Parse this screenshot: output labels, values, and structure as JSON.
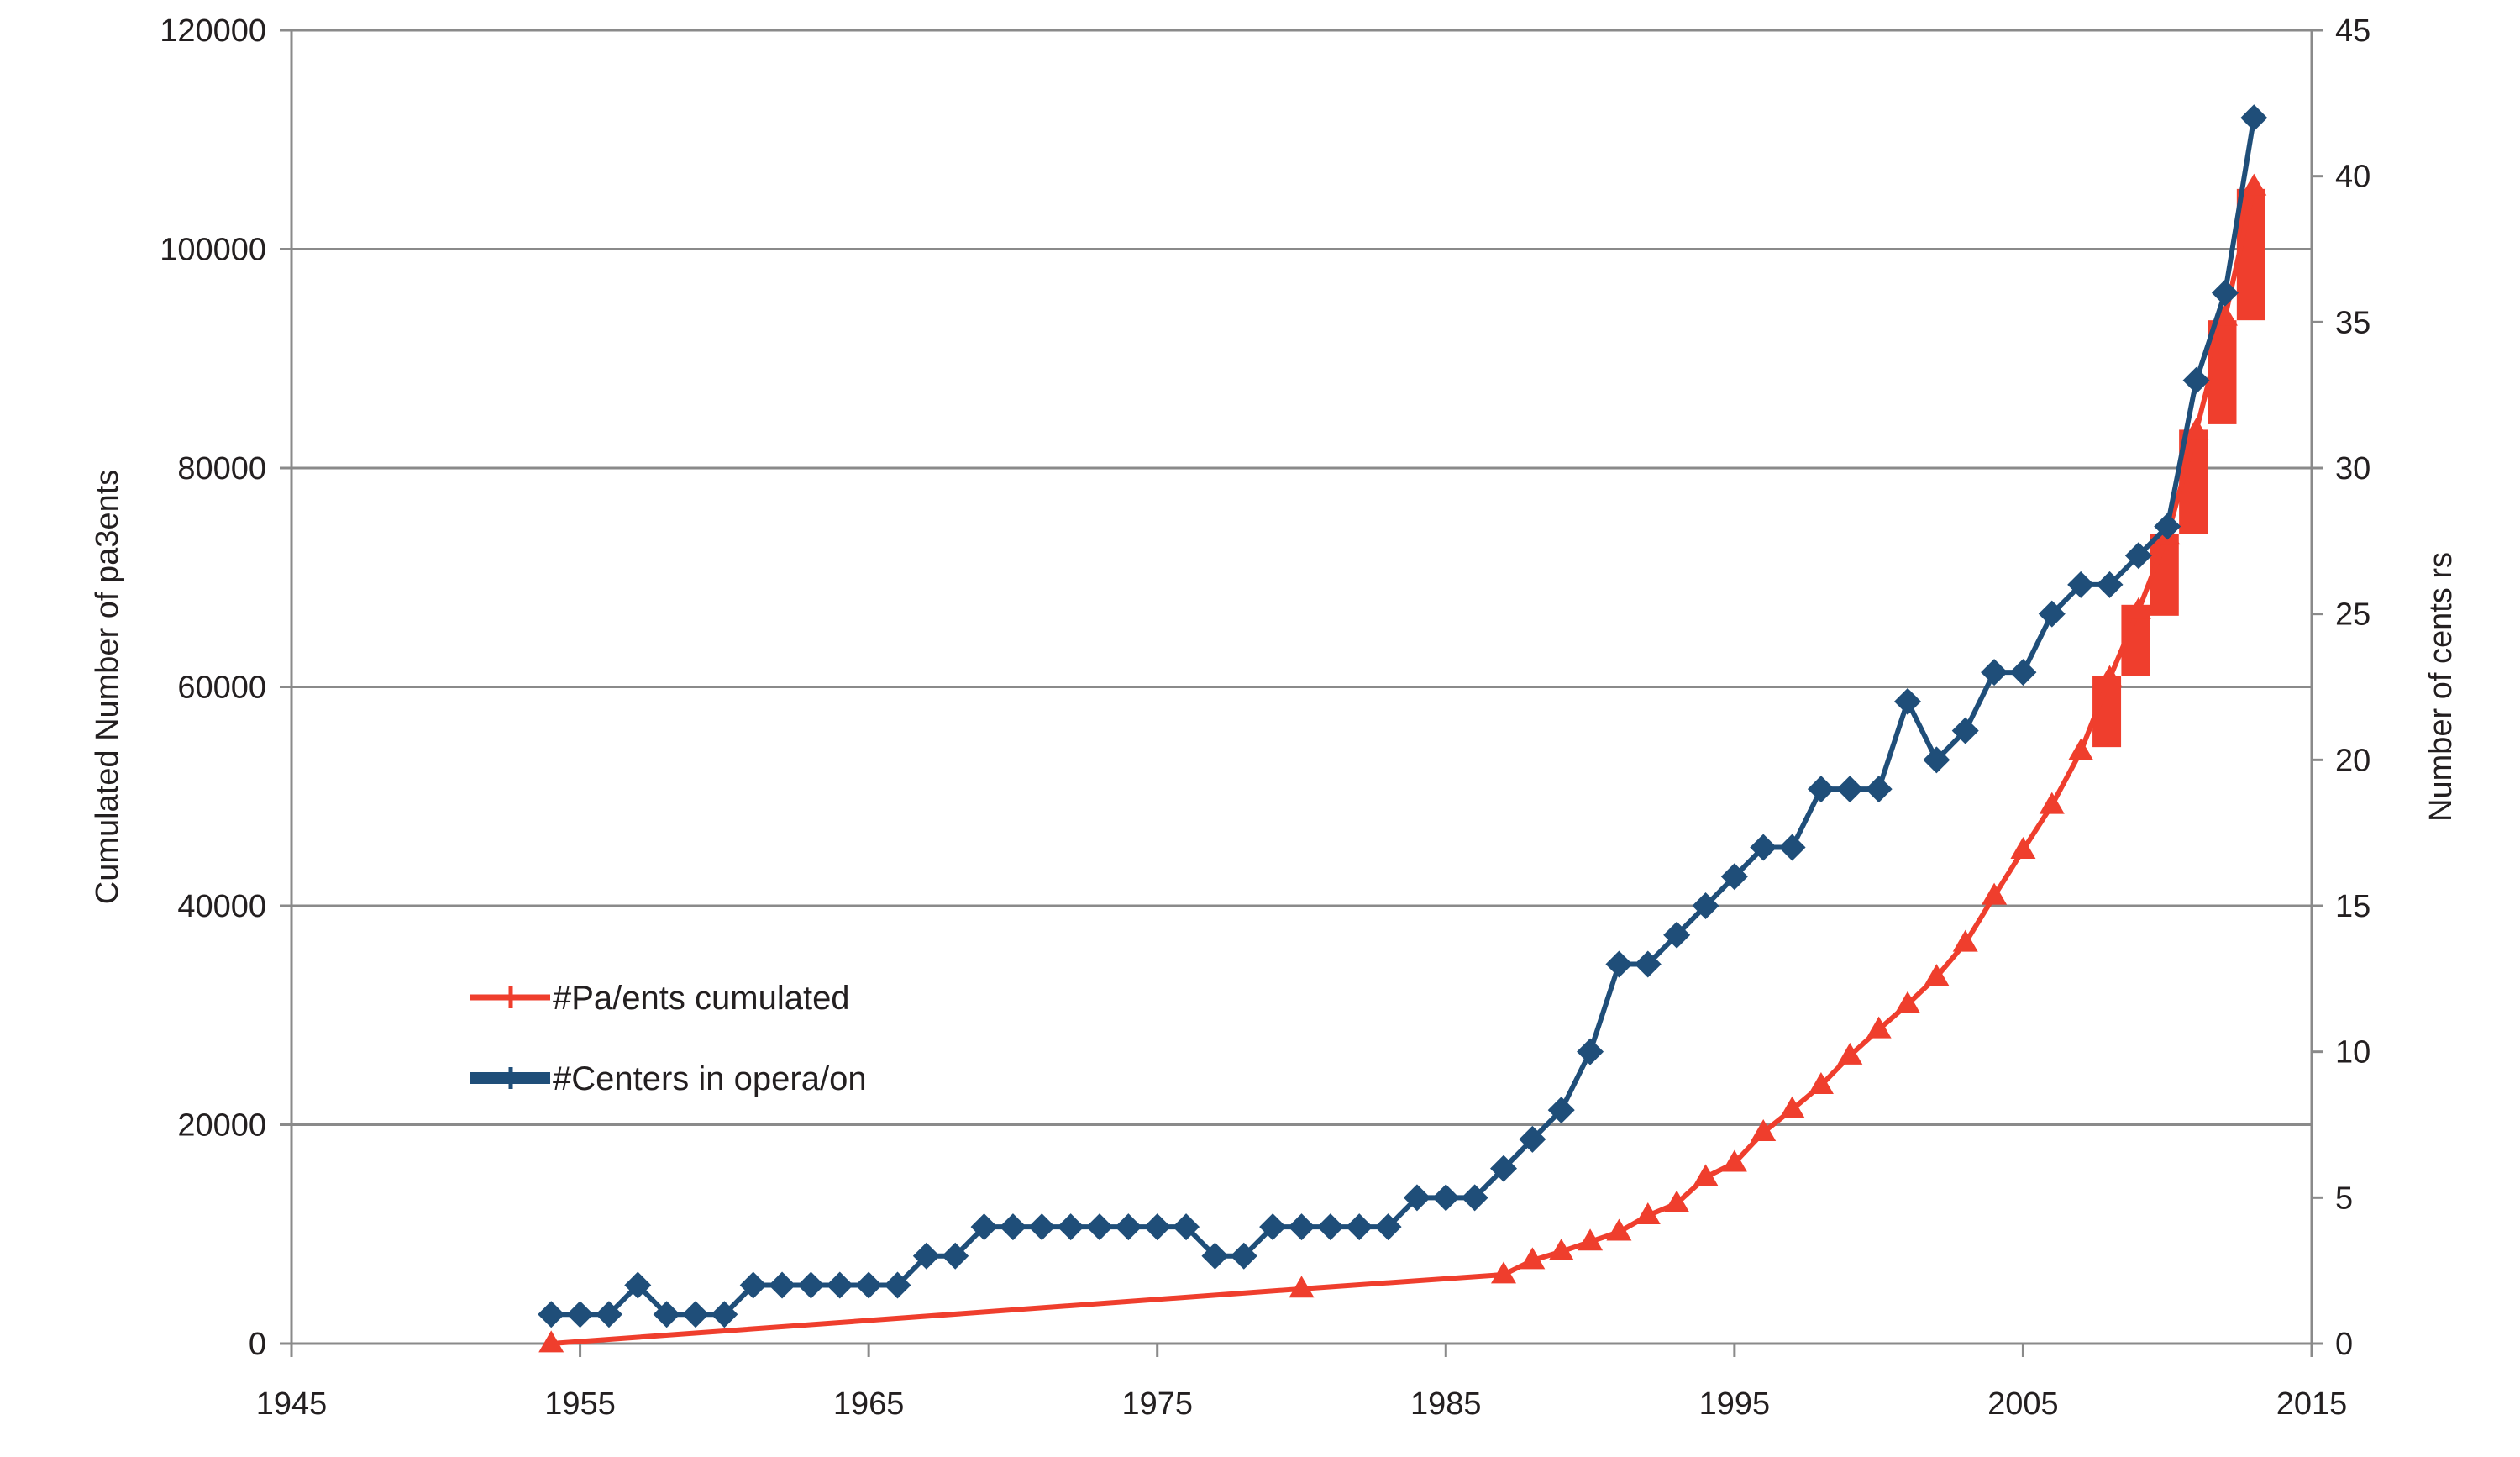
{
  "chart_data": {
    "type": "line",
    "x_axis": {
      "ticks": [
        "1945",
        "1955",
        "1965",
        "1975",
        "1985",
        "1995",
        "2005",
        "2015"
      ],
      "range": [
        1945,
        2015
      ]
    },
    "y_axis_left": {
      "label": "Cumulated Number of pa3ents",
      "ticks": [
        "0",
        "20000",
        "40000",
        "60000",
        "80000",
        "100000",
        "120000"
      ],
      "range": [
        0,
        120000
      ]
    },
    "y_axis_right": {
      "label": "Number of cents rs",
      "ticks": [
        "0",
        "5",
        "10",
        "15",
        "20",
        "25",
        "30",
        "35",
        "40",
        "45"
      ],
      "range": [
        0,
        45
      ]
    },
    "grid": "horizontal",
    "legend_position": "center-left",
    "series": [
      {
        "name": "#Pa/ents cumulated",
        "axis": "left",
        "marker": "triangle",
        "color": "#ef3e2d",
        "points": [
          [
            1954,
            0
          ],
          [
            1980,
            5000
          ],
          [
            1987,
            6300
          ],
          [
            1988,
            7600
          ],
          [
            1989,
            8400
          ],
          [
            1990,
            9300
          ],
          [
            1991,
            10200
          ],
          [
            1992,
            11700
          ],
          [
            1993,
            12800
          ],
          [
            1994,
            15200
          ],
          [
            1995,
            16500
          ],
          [
            1996,
            19300
          ],
          [
            1997,
            21400
          ],
          [
            1998,
            23600
          ],
          [
            1999,
            26300
          ],
          [
            2000,
            28700
          ],
          [
            2001,
            31000
          ],
          [
            2002,
            33500
          ],
          [
            2003,
            36600
          ],
          [
            2004,
            40900
          ],
          [
            2005,
            45100
          ],
          [
            2006,
            49200
          ],
          [
            2007,
            54100
          ],
          [
            2008,
            60800
          ],
          [
            2009,
            67000
          ],
          [
            2010,
            73800
          ],
          [
            2011,
            83400
          ],
          [
            2012,
            93800
          ],
          [
            2013,
            105700
          ]
        ]
      },
      {
        "name": "#Centers in opera/on",
        "axis": "right",
        "marker": "diamond",
        "color": "#1f4e79",
        "points": [
          [
            1954,
            1
          ],
          [
            1955,
            1
          ],
          [
            1956,
            1
          ],
          [
            1957,
            2
          ],
          [
            1958,
            1
          ],
          [
            1959,
            1
          ],
          [
            1960,
            1
          ],
          [
            1961,
            2
          ],
          [
            1962,
            2
          ],
          [
            1963,
            2
          ],
          [
            1964,
            2
          ],
          [
            1965,
            2
          ],
          [
            1966,
            2
          ],
          [
            1967,
            3
          ],
          [
            1968,
            3
          ],
          [
            1969,
            4
          ],
          [
            1970,
            4
          ],
          [
            1971,
            4
          ],
          [
            1972,
            4
          ],
          [
            1973,
            4
          ],
          [
            1974,
            4
          ],
          [
            1975,
            4
          ],
          [
            1976,
            4
          ],
          [
            1977,
            3
          ],
          [
            1978,
            3
          ],
          [
            1979,
            4
          ],
          [
            1980,
            4
          ],
          [
            1981,
            4
          ],
          [
            1982,
            4
          ],
          [
            1983,
            4
          ],
          [
            1984,
            5
          ],
          [
            1985,
            5
          ],
          [
            1986,
            5
          ],
          [
            1987,
            6
          ],
          [
            1988,
            7
          ],
          [
            1989,
            8
          ],
          [
            1990,
            10
          ],
          [
            1991,
            13
          ],
          [
            1992,
            13
          ],
          [
            1993,
            14
          ],
          [
            1994,
            15
          ],
          [
            1995,
            16
          ],
          [
            1996,
            17
          ],
          [
            1997,
            17
          ],
          [
            1998,
            19
          ],
          [
            1999,
            19
          ],
          [
            2000,
            19
          ],
          [
            2001,
            22
          ],
          [
            2002,
            20
          ],
          [
            2003,
            21
          ],
          [
            2004,
            23
          ],
          [
            2005,
            23
          ],
          [
            2006,
            25
          ],
          [
            2007,
            26
          ],
          [
            2008,
            26
          ],
          [
            2009,
            27
          ],
          [
            2010,
            28
          ],
          [
            2011,
            33
          ],
          [
            2012,
            36
          ],
          [
            2013,
            42
          ]
        ]
      }
    ],
    "bars": {
      "axis": "left",
      "color": "#ef3e2d",
      "items": [
        {
          "x": 2007.9,
          "y0": 54500,
          "y1": 61000
        },
        {
          "x": 2008.9,
          "y0": 61000,
          "y1": 67500
        },
        {
          "x": 2009.9,
          "y0": 66500,
          "y1": 74000
        },
        {
          "x": 2010.9,
          "y0": 74000,
          "y1": 83500
        },
        {
          "x": 2011.9,
          "y0": 84000,
          "y1": 93500
        },
        {
          "x": 2012.9,
          "y0": 93500,
          "y1": 105500
        }
      ]
    }
  }
}
